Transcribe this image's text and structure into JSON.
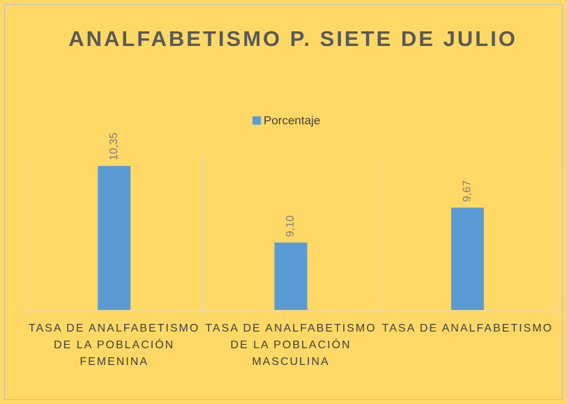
{
  "chart_data": {
    "type": "bar",
    "title": "ANALFABETISMO P. SIETE DE JULIO",
    "categories": [
      "TASA DE ANALFABETISMO DE LA POBLACIÓN FEMENINA",
      "TASA DE ANALFABETISMO DE LA POBLACIÓN MASCULINA",
      "TASA DE ANALFABETISMO"
    ],
    "series": [
      {
        "name": "Porcentaje",
        "color": "#5b9bd5",
        "values": [
          10.35,
          9.1,
          9.67
        ],
        "value_labels": [
          "10,35",
          "9,10",
          "9,67"
        ]
      }
    ],
    "ylim": [
      8,
      10.5
    ],
    "legend": "top"
  }
}
